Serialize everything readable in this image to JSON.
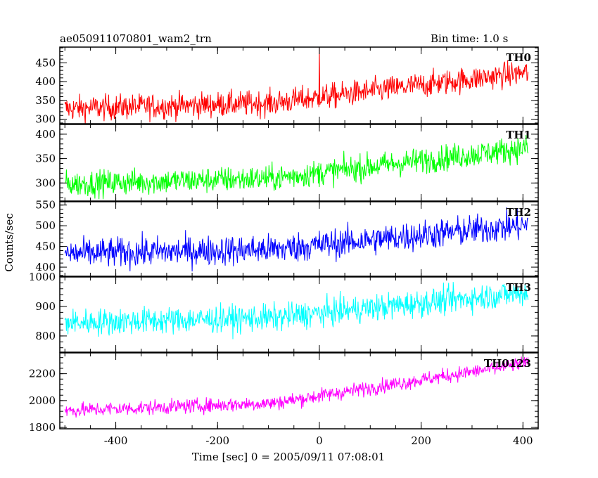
{
  "header": {
    "title": "ae050911070801_wam2_trn",
    "bin_time": "Bin time: 1.0 s"
  },
  "chart_data": {
    "type": "line",
    "xlabel": "Time [sec] 0 = 2005/09/11 07:08:01",
    "ylabel": "Counts/sec",
    "xlim": [
      -510,
      430
    ],
    "xticks": [
      -400,
      -200,
      0,
      200,
      400
    ],
    "x_range": [
      -500,
      410
    ],
    "x_step": 1,
    "panels": [
      {
        "name": "TH0",
        "color": "#ff0000",
        "ylim": [
          288,
          492
        ],
        "yticks": [
          300,
          350,
          400,
          450
        ],
        "trend_start": 328,
        "trend_end": 425,
        "noise_amplitude": 28,
        "spikes": [
          {
            "x": 0,
            "value": 492
          }
        ]
      },
      {
        "name": "TH1",
        "color": "#00ff00",
        "ylim": [
          263,
          420
        ],
        "yticks": [
          300,
          350,
          400
        ],
        "trend_start": 298,
        "trend_end": 372,
        "noise_amplitude": 22,
        "spikes": []
      },
      {
        "name": "TH2",
        "color": "#0000ff",
        "ylim": [
          378,
          558
        ],
        "yticks": [
          400,
          450,
          500,
          550
        ],
        "trend_start": 432,
        "trend_end": 502,
        "noise_amplitude": 30,
        "spikes": []
      },
      {
        "name": "TH3",
        "color": "#00ffff",
        "ylim": [
          745,
          1000
        ],
        "yticks": [
          800,
          900,
          1000
        ],
        "trend_start": 845,
        "trend_end": 948,
        "noise_amplitude": 38,
        "spikes": []
      },
      {
        "name": "TH0123",
        "color": "#ff00ff",
        "ylim": [
          1790,
          2355
        ],
        "yticks": [
          1800,
          2000,
          2200
        ],
        "trend_start": 1925,
        "trend_end": 2280,
        "noise_amplitude": 45,
        "spikes": []
      }
    ]
  }
}
